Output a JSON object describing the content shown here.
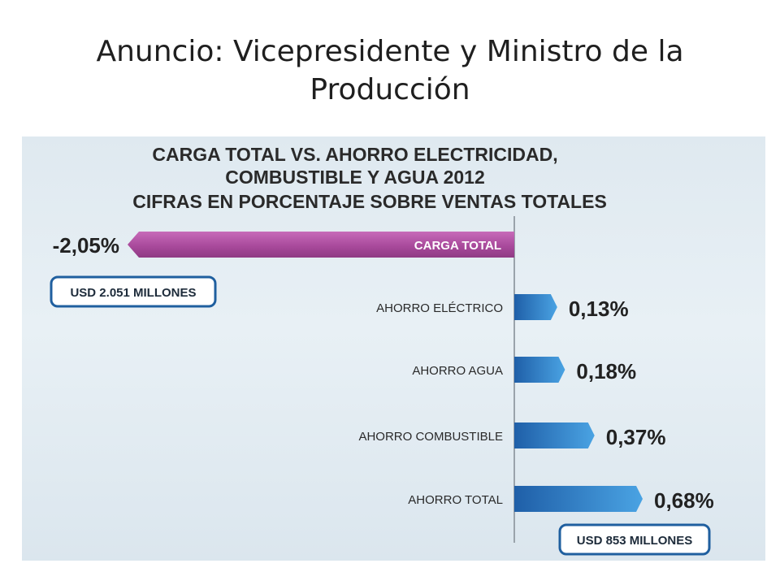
{
  "slide": {
    "title": "Anuncio: Vicepresidente y Ministro de la Producción"
  },
  "colors": {
    "negative_bar": "#b04fa3",
    "positive_bar": "#2f7fcc",
    "positive_bar_light": "#5eaee6",
    "panel_bg": "#e4edf3",
    "text_dark": "#2a2a2a",
    "callout_border": "#1f5f9f"
  },
  "chart_data": {
    "type": "bar",
    "orientation": "horizontal",
    "title_lines": [
      "CARGA TOTAL VS. AHORRO ELECTRICIDAD,",
      "COMBUSTIBLE Y AGUA 2012",
      "CIFRAS EN PORCENTAJE SOBRE VENTAS TOTALES"
    ],
    "categories": [
      "CARGA TOTAL",
      "AHORRO ELÉCTRICO",
      "AHORRO AGUA",
      "AHORRO COMBUSTIBLE",
      "AHORRO TOTAL"
    ],
    "values": [
      -2.05,
      0.13,
      0.18,
      0.37,
      0.68
    ],
    "value_labels": [
      "-2,05%",
      "0,13%",
      "0,18%",
      "0,37%",
      "0,68%"
    ],
    "xlim": [
      -2.05,
      0.68
    ],
    "callouts": [
      {
        "category_index": 0,
        "text": "USD 2.051 MILLONES"
      },
      {
        "category_index": 4,
        "text": "USD 853 MILLONES"
      }
    ]
  }
}
